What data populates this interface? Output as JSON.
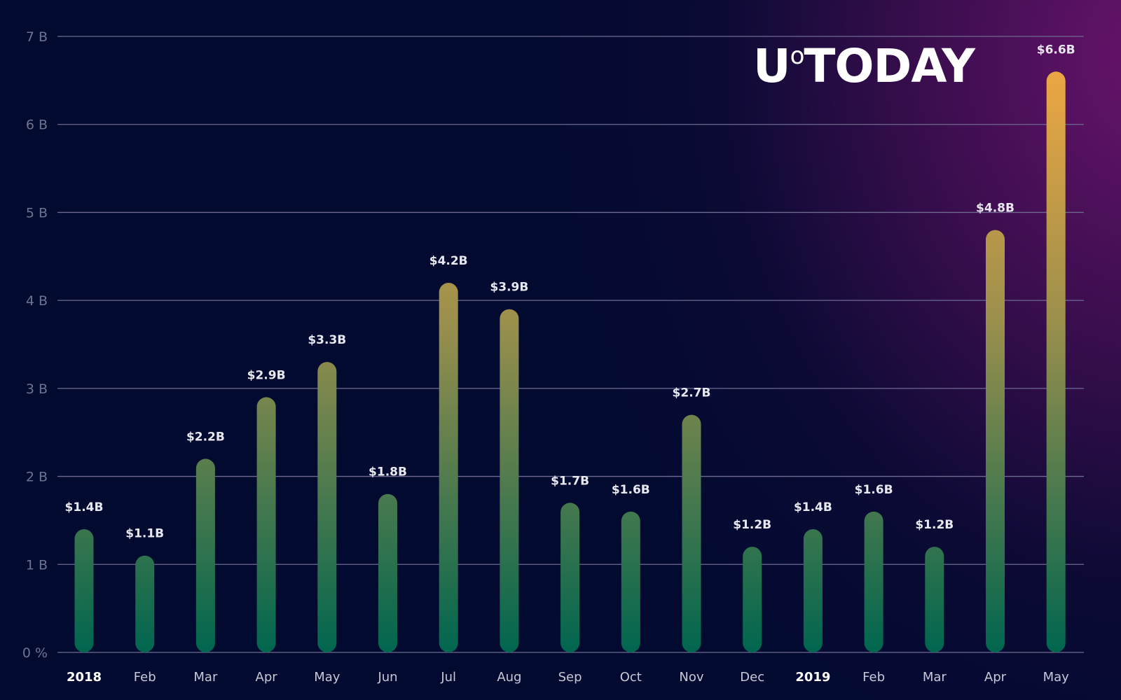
{
  "logo": {
    "text": "U°TODAY"
  },
  "chart_data": {
    "type": "bar",
    "title": "",
    "xlabel": "",
    "ylabel": "",
    "ylim": [
      0,
      7
    ],
    "grid": true,
    "y_ticks": [
      "0 %",
      "1 B",
      "2 B",
      "3 B",
      "4 B",
      "5 B",
      "6 B",
      "7 B"
    ],
    "categories": [
      "2018",
      "Feb",
      "Mar",
      "Apr",
      "May",
      "Jun",
      "Jul",
      "Aug",
      "Sep",
      "Oct",
      "Nov",
      "Dec",
      "2019",
      "Feb",
      "Mar",
      "Apr",
      "May"
    ],
    "bold_categories": [
      "2018",
      "2019"
    ],
    "values": [
      1.4,
      1.1,
      2.2,
      2.9,
      3.3,
      1.8,
      4.2,
      3.9,
      1.7,
      1.6,
      2.7,
      1.2,
      1.4,
      1.6,
      1.2,
      4.8,
      6.6
    ],
    "data_labels": [
      "$1.4B",
      "$1.1B",
      "$2.2B",
      "$2.9B",
      "$3.3B",
      "$1.8B",
      "$4.2B",
      "$3.9B",
      "$1.7B",
      "$1.6B",
      "$2.7B",
      "$1.2B",
      "$1.4B",
      "$1.6B",
      "$1.2B",
      "$4.8B",
      "$6.6B"
    ],
    "colors": {
      "bar_bottom": "#00664f",
      "bar_mid": "#9a8f4c",
      "bar_top": "#f2a842",
      "grid": "#6e6a90",
      "tick_text": "#6f7390",
      "label_text": "#e8e8f0"
    }
  }
}
